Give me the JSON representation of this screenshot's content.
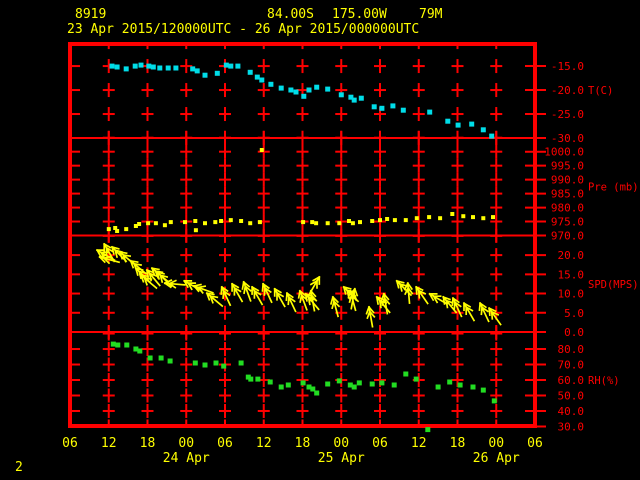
{
  "header": {
    "station_id": "8919",
    "latitude": "84.00S",
    "longitude": "175.00W",
    "elevation": "79M",
    "time_range": "23 Apr 2015/120000UTC - 26 Apr 2015/000000UTC"
  },
  "page_number": "2",
  "colors": {
    "background": "#000000",
    "grid": "#ff0000",
    "axis_text": "#ff0000",
    "header_text": "#ffff00",
    "temperature": "#00dde8",
    "pressure": "#ffff00",
    "wind": "#ffff00",
    "humidity": "#22dd22"
  },
  "chart_data": {
    "type": "scatter",
    "title": "",
    "x_axis": {
      "span_hours": 72,
      "tick_interval_hours": 6,
      "hour_labels": [
        "06",
        "12",
        "18",
        "00",
        "06",
        "12",
        "18",
        "00",
        "06",
        "12",
        "18",
        "00",
        "06"
      ],
      "date_labels": [
        {
          "label": "24 Apr",
          "tick_index": 3
        },
        {
          "label": "25 Apr",
          "tick_index": 7
        },
        {
          "label": "26 Apr",
          "tick_index": 11
        }
      ]
    },
    "panels": [
      {
        "id": "temperature",
        "unit_label": "T(C)",
        "unit_value": -20,
        "series_color": "#00dde8",
        "tick_values": [
          -15,
          -20,
          -25,
          -30
        ],
        "tick_labels": [
          "-15.0",
          "-20.0",
          "-25.0",
          "-30.0"
        ],
        "v_top": -10.4,
        "v_bottom": -30,
        "boundary_tick_value": -10,
        "dot_size": 5,
        "points": [
          [
            6.5,
            -15.0
          ],
          [
            7.3,
            -15.2
          ],
          [
            8.7,
            -15.6
          ],
          [
            10.1,
            -15.0
          ],
          [
            11.0,
            -14.8
          ],
          [
            12.2,
            -15.0
          ],
          [
            12.9,
            -15.2
          ],
          [
            13.9,
            -15.4
          ],
          [
            15.2,
            -15.4
          ],
          [
            16.4,
            -15.4
          ],
          [
            19.0,
            -15.6
          ],
          [
            19.7,
            -16.0
          ],
          [
            20.9,
            -16.9
          ],
          [
            22.8,
            -16.5
          ],
          [
            24.2,
            -14.8
          ],
          [
            24.9,
            -15.0
          ],
          [
            26.0,
            -15.0
          ],
          [
            27.9,
            -16.3
          ],
          [
            29.0,
            -17.3
          ],
          [
            29.7,
            -17.9
          ],
          [
            31.1,
            -18.8
          ],
          [
            32.7,
            -19.6
          ],
          [
            34.2,
            -20.0
          ],
          [
            35.0,
            -20.4
          ],
          [
            36.2,
            -21.3
          ],
          [
            37.0,
            -20.0
          ],
          [
            38.2,
            -19.4
          ],
          [
            39.9,
            -19.8
          ],
          [
            42.0,
            -21.0
          ],
          [
            43.5,
            -21.5
          ],
          [
            44.0,
            -22.1
          ],
          [
            45.1,
            -21.7
          ],
          [
            47.1,
            -23.5
          ],
          [
            48.3,
            -23.8
          ],
          [
            50.0,
            -23.3
          ],
          [
            51.6,
            -24.2
          ],
          [
            55.7,
            -24.6
          ],
          [
            58.5,
            -26.5
          ],
          [
            60.1,
            -27.3
          ],
          [
            62.2,
            -27.1
          ],
          [
            64.0,
            -28.3
          ],
          [
            65.3,
            -29.6
          ]
        ]
      },
      {
        "id": "pressure",
        "unit_label": "Pre (mb)",
        "unit_value": 987.5,
        "series_color": "#ffff00",
        "tick_values": [
          1000,
          995,
          990,
          985,
          980,
          975,
          970
        ],
        "tick_labels": [
          "1000.0",
          "995.0",
          "990.0",
          "985.0",
          "980.0",
          "975.0",
          "970.0"
        ],
        "v_top": 1004.9,
        "v_bottom": 970,
        "boundary_tick_value": 1005,
        "dot_size": 4,
        "points": [
          [
            6.0,
            972.3
          ],
          [
            7.0,
            972.7
          ],
          [
            7.3,
            971.6
          ],
          [
            8.7,
            972.3
          ],
          [
            10.2,
            973.4
          ],
          [
            10.7,
            974.1
          ],
          [
            12.1,
            974.4
          ],
          [
            13.3,
            974.4
          ],
          [
            14.7,
            973.7
          ],
          [
            15.6,
            974.8
          ],
          [
            17.8,
            974.8
          ],
          [
            19.4,
            975.2
          ],
          [
            19.5,
            971.9
          ],
          [
            20.9,
            974.4
          ],
          [
            22.5,
            974.8
          ],
          [
            23.4,
            975.2
          ],
          [
            24.9,
            975.5
          ],
          [
            26.5,
            975.2
          ],
          [
            27.9,
            974.4
          ],
          [
            29.4,
            974.8
          ],
          [
            29.7,
            1000.6
          ],
          [
            36.1,
            974.8
          ],
          [
            37.5,
            974.8
          ],
          [
            38.1,
            974.4
          ],
          [
            39.9,
            974.4
          ],
          [
            41.7,
            974.4
          ],
          [
            43.2,
            975.2
          ],
          [
            43.8,
            974.4
          ],
          [
            44.9,
            974.8
          ],
          [
            46.8,
            975.2
          ],
          [
            48.0,
            975.5
          ],
          [
            49.1,
            975.9
          ],
          [
            50.3,
            975.5
          ],
          [
            52.0,
            975.5
          ],
          [
            53.7,
            976.2
          ],
          [
            55.6,
            976.6
          ],
          [
            57.3,
            976.2
          ],
          [
            59.2,
            977.7
          ],
          [
            60.9,
            976.9
          ],
          [
            62.4,
            976.6
          ],
          [
            64.0,
            976.2
          ],
          [
            65.5,
            976.6
          ]
        ]
      },
      {
        "id": "wind_speed",
        "unit_label": "SPD(MPS)",
        "unit_value": 12.5,
        "series_color": "#ffff00",
        "tick_values": [
          20,
          15,
          10,
          5,
          0
        ],
        "tick_labels": [
          "20.0",
          "15.0",
          "10.0",
          "5.0",
          "0.0"
        ],
        "v_top": 25.1,
        "v_bottom": 0,
        "boundary_tick_value": 25,
        "arrow_length": 20,
        "arrows": [
          [
            4.2,
            21.3,
            150
          ],
          [
            5.3,
            22.9,
            120
          ],
          [
            4.6,
            19.5,
            165
          ],
          [
            6.5,
            22.1,
            135
          ],
          [
            7.7,
            20.8,
            140
          ],
          [
            9.4,
            18.5,
            140
          ],
          [
            10.2,
            16.6,
            135
          ],
          [
            11.0,
            14.8,
            140
          ],
          [
            11.9,
            16.1,
            130
          ],
          [
            12.7,
            16.6,
            140
          ],
          [
            13.5,
            15.6,
            135
          ],
          [
            14.7,
            12.7,
            175
          ],
          [
            17.7,
            13.3,
            150
          ],
          [
            19.2,
            12.0,
            160
          ],
          [
            21.2,
            10.1,
            140
          ],
          [
            23.5,
            11.7,
            115
          ],
          [
            25.1,
            12.5,
            120
          ],
          [
            26.9,
            13.0,
            110
          ],
          [
            28.2,
            11.7,
            120
          ],
          [
            29.9,
            12.5,
            115
          ],
          [
            31.7,
            11.2,
            120
          ],
          [
            33.6,
            10.1,
            115
          ],
          [
            35.6,
            10.7,
            110
          ],
          [
            36.5,
            9.9,
            130
          ],
          [
            37.3,
            10.7,
            100
          ],
          [
            38.6,
            14.3,
            60
          ],
          [
            40.7,
            9.1,
            105
          ],
          [
            42.4,
            11.7,
            135
          ],
          [
            43.4,
            10.7,
            105
          ],
          [
            44.1,
            11.2,
            80
          ],
          [
            46.3,
            6.5,
            100
          ],
          [
            47.5,
            9.1,
            130
          ],
          [
            48.6,
            9.9,
            100
          ],
          [
            50.6,
            13.3,
            135
          ],
          [
            52.3,
            12.7,
            95
          ],
          [
            53.6,
            11.7,
            125
          ],
          [
            55.7,
            9.9,
            150
          ],
          [
            57.8,
            9.1,
            130
          ],
          [
            59.3,
            8.8,
            115
          ],
          [
            61.0,
            7.5,
            120
          ],
          [
            63.5,
            7.5,
            115
          ],
          [
            64.9,
            6.2,
            125
          ]
        ]
      },
      {
        "id": "relative_humidity",
        "unit_label": "RH(%)",
        "unit_value": 60,
        "series_color": "#22dd22",
        "tick_values": [
          80,
          70,
          60,
          50,
          40,
          30
        ],
        "tick_labels": [
          "80.0",
          "70.0",
          "60.0",
          "50.0",
          "40.0",
          "30.0"
        ],
        "v_top": 91.0,
        "v_bottom": 30.3,
        "boundary_tick_value": 90,
        "dot_size": 5,
        "points": [
          [
            6.7,
            83.2
          ],
          [
            7.4,
            82.6
          ],
          [
            8.8,
            82.6
          ],
          [
            10.2,
            80.0
          ],
          [
            10.8,
            78.7
          ],
          [
            12.4,
            74.2
          ],
          [
            14.1,
            74.2
          ],
          [
            15.5,
            72.3
          ],
          [
            19.4,
            71.0
          ],
          [
            20.9,
            69.7
          ],
          [
            22.6,
            71.0
          ],
          [
            23.8,
            69.0
          ],
          [
            26.5,
            71.0
          ],
          [
            27.6,
            61.9
          ],
          [
            28.0,
            60.6
          ],
          [
            29.1,
            60.6
          ],
          [
            31.0,
            58.7
          ],
          [
            32.7,
            55.5
          ],
          [
            33.8,
            56.8
          ],
          [
            36.1,
            58.1
          ],
          [
            37.0,
            55.5
          ],
          [
            37.6,
            54.2
          ],
          [
            38.2,
            51.6
          ],
          [
            39.9,
            57.4
          ],
          [
            41.7,
            59.4
          ],
          [
            43.4,
            56.8
          ],
          [
            44.0,
            55.5
          ],
          [
            44.8,
            58.1
          ],
          [
            46.8,
            57.4
          ],
          [
            48.3,
            58.1
          ],
          [
            50.2,
            56.8
          ],
          [
            52.0,
            63.9
          ],
          [
            53.6,
            60.6
          ],
          [
            57.0,
            55.5
          ],
          [
            58.8,
            58.7
          ],
          [
            60.4,
            56.8
          ],
          [
            62.4,
            55.5
          ],
          [
            64.0,
            53.5
          ],
          [
            65.7,
            46.5
          ],
          [
            55.4,
            28.0
          ]
        ]
      }
    ]
  }
}
